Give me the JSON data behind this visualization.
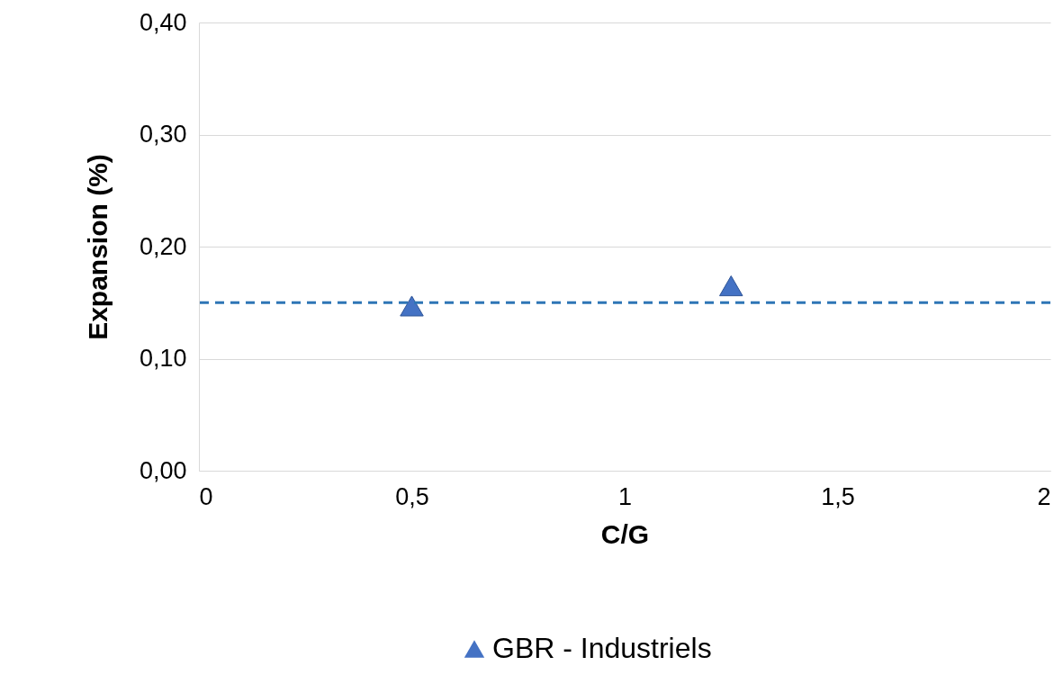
{
  "chart_data": {
    "type": "scatter",
    "xlabel": "C/G",
    "ylabel": "Expansion (%)",
    "series": [
      {
        "name": "GBR - Industriels",
        "color": "#4472c4",
        "x": [
          0.5,
          1.25
        ],
        "values": [
          0.147,
          0.165
        ]
      }
    ],
    "marker": "triangle",
    "xlim": [
      0,
      2
    ],
    "xticks": [
      0,
      {
        "value": 0.5,
        "label": "0,5"
      },
      1,
      {
        "value": 1.5,
        "label": "1,5"
      },
      2
    ],
    "ylim": [
      0,
      0.4
    ],
    "yticks": [
      {
        "value": 0,
        "label": "0,00"
      },
      {
        "value": 0.1,
        "label": "0,10"
      },
      {
        "value": 0.2,
        "label": "0,20"
      },
      {
        "value": 0.3,
        "label": "0,30"
      },
      {
        "value": 0.4,
        "label": "0,40"
      }
    ],
    "ref_lines": [
      {
        "axis": "y",
        "value": 0.15,
        "color": "#2e75b6",
        "line_style": "dashed"
      }
    ],
    "grid": "y",
    "legend": "bottom"
  }
}
